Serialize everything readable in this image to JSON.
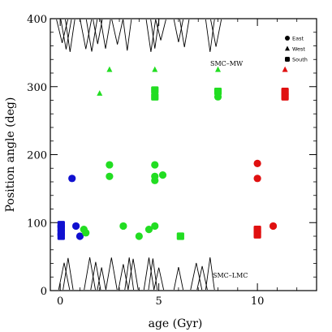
{
  "chart_data": {
    "type": "scatter",
    "title": "",
    "xlabel": "age (Gyr)",
    "ylabel": "Position angle (deg)",
    "xlim": [
      -0.5,
      13.0
    ],
    "ylim": [
      0,
      400
    ],
    "xticks": [
      0,
      5,
      10
    ],
    "yticks": [
      0,
      100,
      200,
      300,
      400
    ],
    "grid": false,
    "legend_position": "top-right",
    "legend": [
      {
        "label": "East",
        "marker": "circle"
      },
      {
        "label": "West",
        "marker": "triangle"
      },
      {
        "label": "South",
        "marker": "square"
      }
    ],
    "annotations": [
      "SMC–MW",
      "SMC–LMC"
    ],
    "colors": {
      "blue": "#1010d0",
      "green": "#22dd22",
      "red": "#e01010",
      "black": "#000000"
    },
    "series": [
      {
        "color": "blue",
        "points": [
          {
            "x": 0.05,
            "y": 85,
            "marker": "square"
          },
          {
            "x": 0.05,
            "y": 92,
            "marker": "square"
          },
          {
            "x": 0.05,
            "y": 80,
            "marker": "square"
          },
          {
            "x": 0.05,
            "y": 97,
            "marker": "square"
          },
          {
            "x": 0.6,
            "y": 165,
            "marker": "circle"
          },
          {
            "x": 0.8,
            "y": 95,
            "marker": "circle"
          },
          {
            "x": 1.0,
            "y": 80,
            "marker": "circle"
          }
        ]
      },
      {
        "color": "green",
        "points": [
          {
            "x": 1.2,
            "y": 90,
            "marker": "circle"
          },
          {
            "x": 1.3,
            "y": 85,
            "marker": "circle"
          },
          {
            "x": 2.0,
            "y": 290,
            "marker": "triangle"
          },
          {
            "x": 2.5,
            "y": 325,
            "marker": "triangle"
          },
          {
            "x": 2.5,
            "y": 185,
            "marker": "circle"
          },
          {
            "x": 2.5,
            "y": 168,
            "marker": "circle"
          },
          {
            "x": 3.2,
            "y": 95,
            "marker": "circle"
          },
          {
            "x": 4.0,
            "y": 80,
            "marker": "circle"
          },
          {
            "x": 4.5,
            "y": 90,
            "marker": "circle"
          },
          {
            "x": 4.8,
            "y": 95,
            "marker": "circle"
          },
          {
            "x": 4.8,
            "y": 325,
            "marker": "triangle"
          },
          {
            "x": 4.8,
            "y": 295,
            "marker": "square"
          },
          {
            "x": 4.8,
            "y": 285,
            "marker": "square"
          },
          {
            "x": 4.8,
            "y": 185,
            "marker": "circle"
          },
          {
            "x": 4.8,
            "y": 168,
            "marker": "circle"
          },
          {
            "x": 4.8,
            "y": 162,
            "marker": "circle"
          },
          {
            "x": 5.2,
            "y": 170,
            "marker": "circle"
          },
          {
            "x": 6.1,
            "y": 80,
            "marker": "square"
          },
          {
            "x": 8.0,
            "y": 325,
            "marker": "triangle"
          },
          {
            "x": 8.0,
            "y": 293,
            "marker": "square"
          },
          {
            "x": 8.0,
            "y": 285,
            "marker": "circle"
          }
        ]
      },
      {
        "color": "red",
        "points": [
          {
            "x": 10.0,
            "y": 187,
            "marker": "circle"
          },
          {
            "x": 10.0,
            "y": 165,
            "marker": "circle"
          },
          {
            "x": 10.0,
            "y": 90,
            "marker": "square"
          },
          {
            "x": 10.0,
            "y": 82,
            "marker": "square"
          },
          {
            "x": 10.8,
            "y": 95,
            "marker": "circle"
          },
          {
            "x": 11.4,
            "y": 325,
            "marker": "triangle"
          },
          {
            "x": 11.4,
            "y": 293,
            "marker": "square"
          },
          {
            "x": 11.4,
            "y": 285,
            "marker": "square"
          }
        ]
      }
    ],
    "distribution_peaks_top": [
      0.1,
      0.3,
      0.5,
      1.3,
      1.6,
      1.9,
      2.3,
      2.9,
      3.4,
      4.6,
      4.8,
      5.1,
      6.0,
      6.3,
      7.6,
      7.9
    ],
    "distribution_peaks_bottom": [
      0.2,
      0.4,
      1.5,
      1.8,
      2.1,
      2.6,
      3.2,
      3.5,
      3.7,
      4.5,
      4.7,
      5.0,
      6.0,
      6.9,
      7.2,
      7.6
    ]
  }
}
